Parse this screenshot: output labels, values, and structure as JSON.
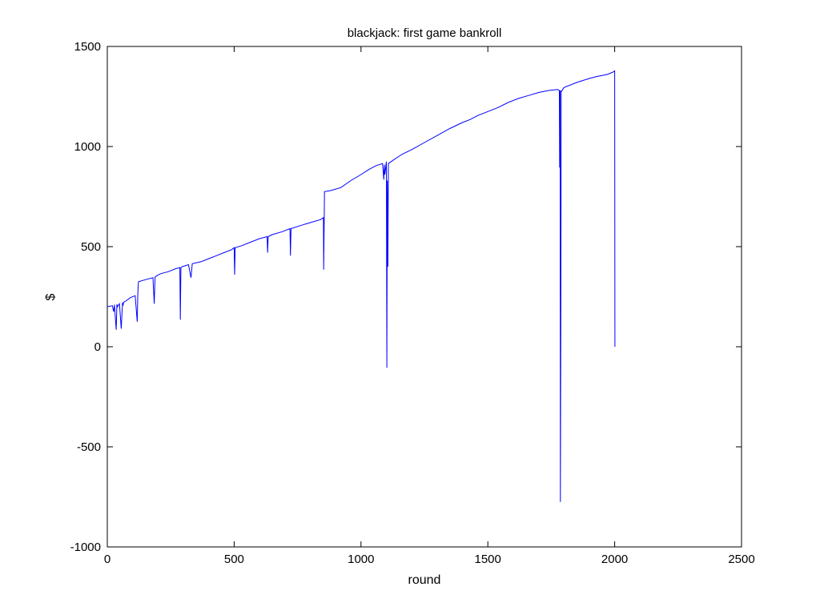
{
  "chart_data": {
    "type": "line",
    "title": "blackjack: first game bankroll",
    "xlabel": "round",
    "ylabel": "$",
    "xlim": [
      0,
      2500
    ],
    "ylim": [
      -1000,
      1500
    ],
    "xticks": [
      0,
      500,
      1000,
      1500,
      2000,
      2500
    ],
    "xtick_labels": [
      "0",
      "500",
      "1000",
      "1500",
      "2000",
      "2500"
    ],
    "yticks": [
      -1000,
      -500,
      0,
      500,
      1000,
      1500
    ],
    "ytick_labels": [
      "-1000",
      "-500",
      "0",
      "500",
      "1000",
      "1500"
    ],
    "grid": false,
    "legend": "none",
    "colors": {
      "line": "#0000ff",
      "axes": "#000000",
      "background": "#ffffff"
    },
    "series": [
      {
        "x": [
          0,
          20,
          25,
          28,
          35,
          38,
          40,
          48,
          55,
          60,
          62,
          64,
          75,
          90,
          110,
          118,
          120,
          122,
          123,
          150,
          180,
          185,
          188,
          195,
          210,
          240,
          270,
          286,
          288,
          290,
          295,
          320,
          330,
          335,
          370,
          400,
          430,
          460,
          490,
          500,
          502,
          504,
          530,
          560,
          600,
          630,
          632,
          634,
          650,
          690,
          720,
          722,
          724,
          760,
          800,
          840,
          852,
          853,
          855,
          856,
          880,
          920,
          960,
          1000,
          1030,
          1060,
          1085,
          1090,
          1092,
          1094,
          1100,
          1102,
          1104,
          1106,
          1108,
          1130,
          1160,
          1200,
          1250,
          1300,
          1350,
          1400,
          1430,
          1460,
          1500,
          1540,
          1580,
          1620,
          1660,
          1700,
          1740,
          1775,
          1782,
          1783,
          1785,
          1786,
          1788,
          1789,
          1790,
          1800,
          1850,
          1900,
          1930,
          1950,
          1970,
          1990,
          1998,
          2000,
          2001
        ],
        "y": [
          200,
          205,
          175,
          210,
          85,
          212,
          200,
          215,
          90,
          220,
          205,
          222,
          230,
          245,
          255,
          125,
          250,
          310,
          325,
          335,
          345,
          215,
          348,
          355,
          365,
          375,
          390,
          395,
          135,
          395,
          400,
          410,
          345,
          415,
          425,
          440,
          455,
          470,
          485,
          495,
          360,
          495,
          505,
          520,
          540,
          550,
          470,
          550,
          560,
          575,
          590,
          455,
          590,
          605,
          620,
          635,
          645,
          385,
          645,
          775,
          780,
          795,
          830,
          860,
          885,
          905,
          915,
          835,
          910,
          860,
          925,
          -105,
          830,
          400,
          915,
          935,
          960,
          985,
          1020,
          1055,
          1090,
          1120,
          1135,
          1155,
          1175,
          1195,
          1220,
          1240,
          1255,
          1270,
          1280,
          1285,
          1280,
          895,
          1280,
          -775,
          250,
          1280,
          1275,
          1295,
          1320,
          1340,
          1350,
          1355,
          1360,
          1370,
          1375,
          1380,
          0
        ]
      }
    ]
  }
}
